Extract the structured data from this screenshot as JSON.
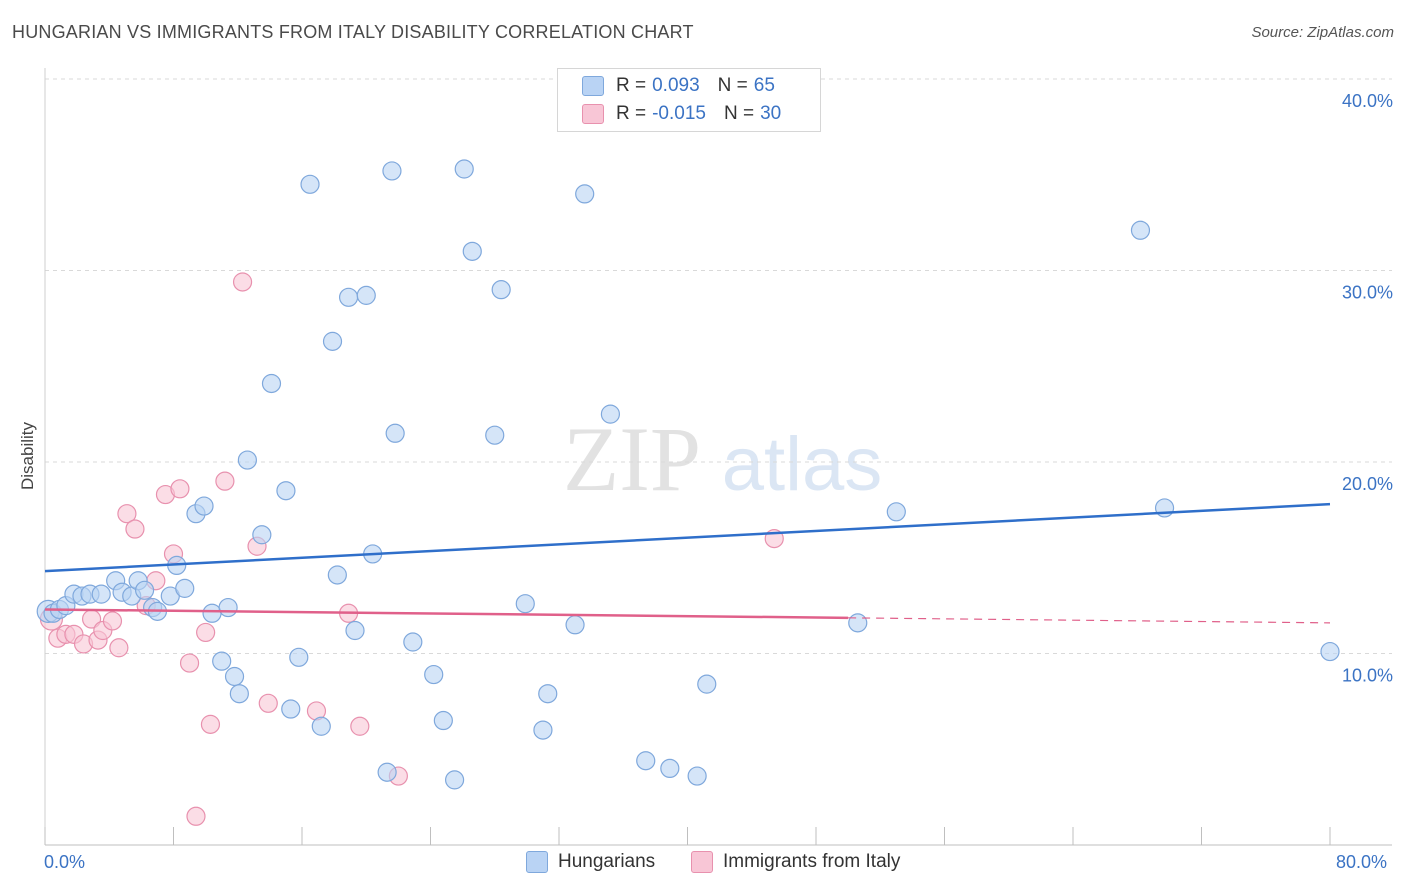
{
  "title": "HUNGARIAN VS IMMIGRANTS FROM ITALY DISABILITY CORRELATION CHART",
  "source": "Source: ZipAtlas.com",
  "watermark": {
    "zip": "ZIP",
    "atlas": "atlas"
  },
  "colors": {
    "blue_fill": "#b9d3f4",
    "blue_stroke": "#7fa8dc",
    "blue_line": "#2f6fca",
    "pink_fill": "#f8c6d6",
    "pink_stroke": "#e891ae",
    "pink_line": "#e0608a",
    "axis_text": "#3b73c4",
    "grid": "#d9d9d9"
  },
  "legend": {
    "rows": [
      {
        "series": "blue",
        "r_label": "R = ",
        "r_value": " 0.093",
        "n_label": "N = ",
        "n_value": "65"
      },
      {
        "series": "pink",
        "r_label": "R = ",
        "r_value": "-0.015",
        "n_label": "N = ",
        "n_value": "30"
      }
    ]
  },
  "chart_data": {
    "type": "scatter",
    "title": "HUNGARIAN VS IMMIGRANTS FROM ITALY DISABILITY CORRELATION CHART",
    "xlabel": "",
    "ylabel": "Disability",
    "xlim": [
      0,
      80
    ],
    "ylim": [
      0,
      40
    ],
    "x_tick_labels": [
      "0.0%",
      "80.0%"
    ],
    "y_ticks": [
      {
        "value": 10,
        "label": "10.0%"
      },
      {
        "value": 20,
        "label": "20.0%"
      },
      {
        "value": 30,
        "label": "30.0%"
      },
      {
        "value": 40,
        "label": "40.0%"
      }
    ],
    "series": [
      {
        "name": "Hungarians",
        "color": "blue",
        "trend": {
          "x0": 0,
          "y0": 14.3,
          "x1": 80,
          "y1": 17.8,
          "dashed_from": null
        },
        "points": [
          [
            0.2,
            12.2
          ],
          [
            0.5,
            12.1
          ],
          [
            0.9,
            12.3
          ],
          [
            1.3,
            12.5
          ],
          [
            1.8,
            13.1
          ],
          [
            2.3,
            13.0
          ],
          [
            2.8,
            13.1
          ],
          [
            3.5,
            13.1
          ],
          [
            4.4,
            13.8
          ],
          [
            4.8,
            13.2
          ],
          [
            5.4,
            13.0
          ],
          [
            5.8,
            13.8
          ],
          [
            6.2,
            13.3
          ],
          [
            6.7,
            12.4
          ],
          [
            7.0,
            12.2
          ],
          [
            7.8,
            13.0
          ],
          [
            8.2,
            14.6
          ],
          [
            8.7,
            13.4
          ],
          [
            9.4,
            17.3
          ],
          [
            9.9,
            17.7
          ],
          [
            10.4,
            12.1
          ],
          [
            11.0,
            9.6
          ],
          [
            11.4,
            12.4
          ],
          [
            11.8,
            8.8
          ],
          [
            12.1,
            7.9
          ],
          [
            12.6,
            20.1
          ],
          [
            13.5,
            16.2
          ],
          [
            14.1,
            24.1
          ],
          [
            15.0,
            18.5
          ],
          [
            15.3,
            7.1
          ],
          [
            15.8,
            9.8
          ],
          [
            16.5,
            34.5
          ],
          [
            17.2,
            6.2
          ],
          [
            17.9,
            26.3
          ],
          [
            18.2,
            14.1
          ],
          [
            18.9,
            28.6
          ],
          [
            19.3,
            11.2
          ],
          [
            20.0,
            28.7
          ],
          [
            20.4,
            15.2
          ],
          [
            21.3,
            3.8
          ],
          [
            21.6,
            35.2
          ],
          [
            21.8,
            21.5
          ],
          [
            22.9,
            10.6
          ],
          [
            24.2,
            8.9
          ],
          [
            24.8,
            6.5
          ],
          [
            25.5,
            3.4
          ],
          [
            26.1,
            35.3
          ],
          [
            26.6,
            31.0
          ],
          [
            28.0,
            21.4
          ],
          [
            28.4,
            29.0
          ],
          [
            29.9,
            12.6
          ],
          [
            31.0,
            6.0
          ],
          [
            31.3,
            7.9
          ],
          [
            33.0,
            11.5
          ],
          [
            33.6,
            34.0
          ],
          [
            35.2,
            22.5
          ],
          [
            37.4,
            4.4
          ],
          [
            38.9,
            4.0
          ],
          [
            40.6,
            3.6
          ],
          [
            41.2,
            8.4
          ],
          [
            50.6,
            11.6
          ],
          [
            53.0,
            17.4
          ],
          [
            68.2,
            32.1
          ],
          [
            69.7,
            17.6
          ],
          [
            80.0,
            10.1
          ]
        ]
      },
      {
        "name": "Immigrants from Italy",
        "color": "pink",
        "trend": {
          "x0": 0,
          "y0": 12.3,
          "x1": 80,
          "y1": 11.6,
          "dashed_from": 50.0
        },
        "points": [
          [
            0.4,
            11.8
          ],
          [
            0.8,
            10.8
          ],
          [
            1.3,
            11.0
          ],
          [
            1.8,
            11.0
          ],
          [
            2.4,
            10.5
          ],
          [
            2.9,
            11.8
          ],
          [
            3.3,
            10.7
          ],
          [
            3.6,
            11.2
          ],
          [
            4.2,
            11.7
          ],
          [
            4.6,
            10.3
          ],
          [
            5.1,
            17.3
          ],
          [
            5.6,
            16.5
          ],
          [
            6.3,
            12.5
          ],
          [
            6.9,
            13.8
          ],
          [
            7.5,
            18.3
          ],
          [
            8.0,
            15.2
          ],
          [
            8.4,
            18.6
          ],
          [
            9.0,
            9.5
          ],
          [
            9.4,
            1.5
          ],
          [
            10.0,
            11.1
          ],
          [
            10.3,
            6.3
          ],
          [
            11.2,
            19.0
          ],
          [
            12.3,
            29.4
          ],
          [
            13.2,
            15.6
          ],
          [
            13.9,
            7.4
          ],
          [
            16.9,
            7.0
          ],
          [
            18.9,
            12.1
          ],
          [
            19.6,
            6.2
          ],
          [
            22.0,
            3.6
          ],
          [
            45.4,
            16.0
          ]
        ]
      }
    ]
  }
}
